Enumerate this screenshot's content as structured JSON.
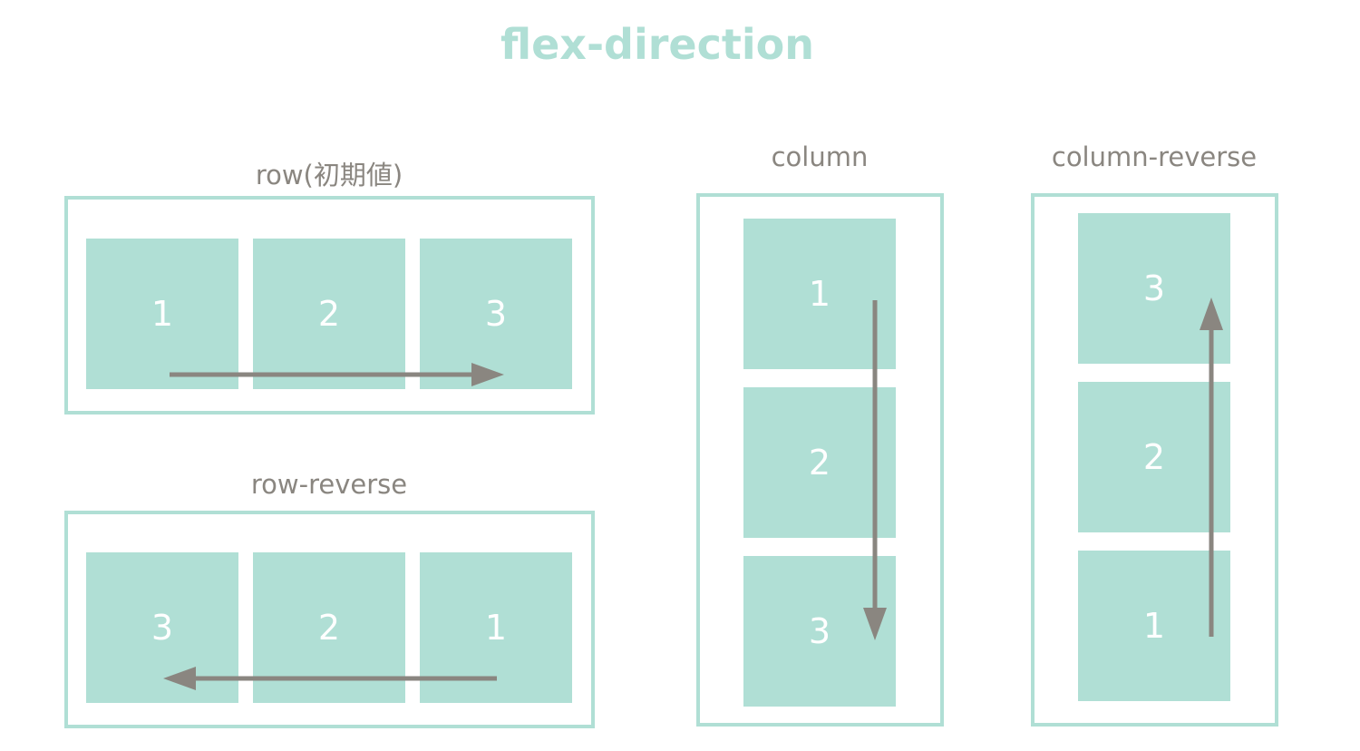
{
  "title": "flex-direction",
  "colors": {
    "accent": "#b0dfd5",
    "arrow": "#8a8680",
    "label": "#8a8680"
  },
  "panels": {
    "row": {
      "label": "row(初期値)",
      "items": [
        "1",
        "2",
        "3"
      ]
    },
    "row_reverse": {
      "label": "row-reverse",
      "items": [
        "3",
        "2",
        "1"
      ]
    },
    "column": {
      "label": "column",
      "items": [
        "1",
        "2",
        "3"
      ]
    },
    "column_reverse": {
      "label": "column-reverse",
      "items": [
        "3",
        "2",
        "1"
      ]
    }
  }
}
